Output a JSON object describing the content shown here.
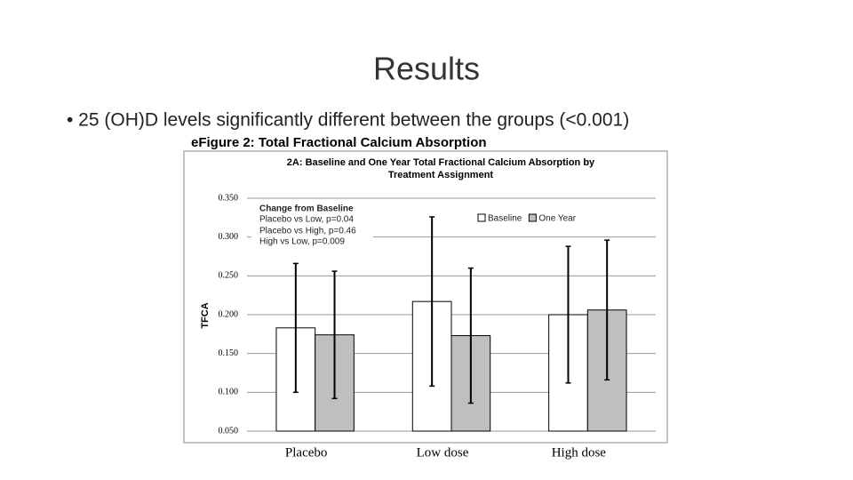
{
  "slide": {
    "title": "Results",
    "bullet": "• 25 (OH)D levels significantly different between the groups (<0.001)",
    "figure_label": "eFigure 2: Total Fractional Calcium Absorption"
  },
  "chart_data": {
    "type": "bar",
    "title": [
      "2A: Baseline and One Year Total Fractional Calcium Absorption by",
      "Treatment Assignment"
    ],
    "y_label": "TFCA",
    "annotation": [
      "Change from Baseline",
      "Placebo vs Low, p=0.04",
      "Placebo vs High, p=0.46",
      "High vs Low, p=0.009"
    ],
    "categories": [
      "Placebo",
      "Low dose",
      "High dose"
    ],
    "series": [
      {
        "name": "Baseline",
        "color": "#ffffff",
        "values": [
          0.183,
          0.217,
          0.2
        ],
        "errors": [
          0.083,
          0.109,
          0.088
        ]
      },
      {
        "name": "One Year",
        "color": "#bfbfbf",
        "values": [
          0.174,
          0.173,
          0.206
        ],
        "errors": [
          0.082,
          0.087,
          0.09
        ]
      }
    ],
    "ylim": [
      0.05,
      0.35
    ],
    "yticks": [
      {
        "value": 0.05,
        "label": "0.050"
      },
      {
        "value": 0.1,
        "label": "0.100"
      },
      {
        "value": 0.15,
        "label": "0.150"
      },
      {
        "value": 0.2,
        "label": "0.200"
      },
      {
        "value": 0.25,
        "label": "0.250"
      },
      {
        "value": 0.3,
        "label": "0.300"
      },
      {
        "value": 0.35,
        "label": "0.350"
      }
    ],
    "grid": true,
    "legend": "top-right"
  }
}
